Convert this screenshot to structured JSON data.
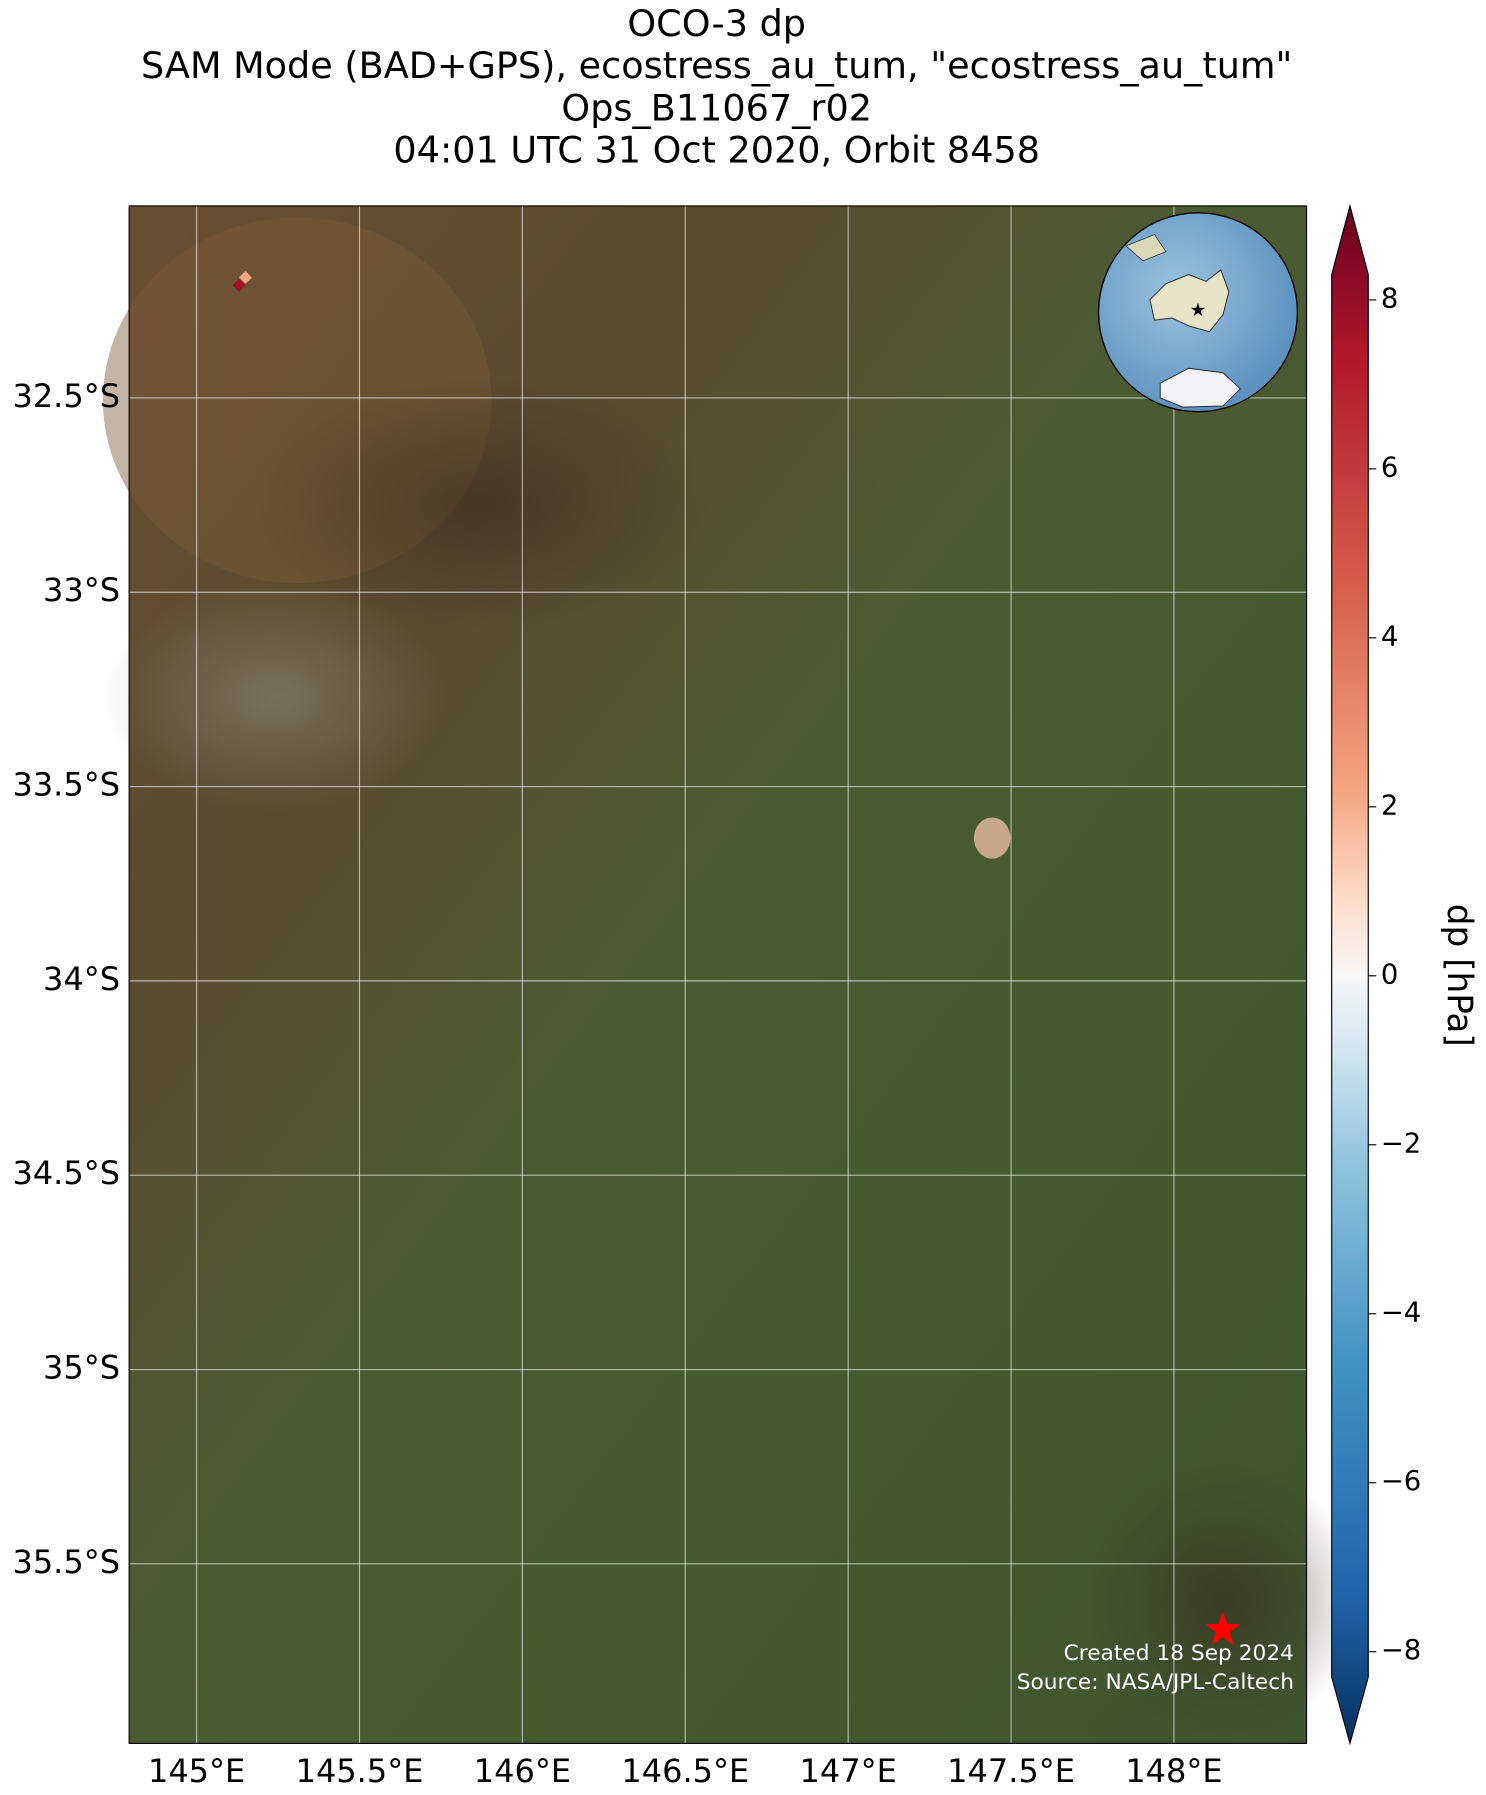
{
  "chart_data": {
    "type": "map",
    "title": [
      "OCO-3 dp",
      "SAM Mode (BAD+GPS), ecostress_au_tum, \"ecostress_au_tum\"",
      "Ops_B11067_r02",
      "04:01 UTC 31 Oct 2020, Orbit 8458"
    ],
    "xlim": [
      144.793,
      148.407
    ],
    "ylim": [
      -35.962,
      -32.006
    ],
    "xticks": [
      {
        "value": 145,
        "label": "145°E"
      },
      {
        "value": 145.5,
        "label": "145.5°E"
      },
      {
        "value": 146,
        "label": "146°E"
      },
      {
        "value": 146.5,
        "label": "146.5°E"
      },
      {
        "value": 147,
        "label": "147°E"
      },
      {
        "value": 147.5,
        "label": "147.5°E"
      },
      {
        "value": 148,
        "label": "148°E"
      }
    ],
    "yticks": [
      {
        "value": -32.5,
        "label": "32.5°S"
      },
      {
        "value": -33,
        "label": "33°S"
      },
      {
        "value": -33.5,
        "label": "33.5°S"
      },
      {
        "value": -34,
        "label": "34°S"
      },
      {
        "value": -34.5,
        "label": "34.5°S"
      },
      {
        "value": -35,
        "label": "35°S"
      },
      {
        "value": -35.5,
        "label": "35.5°S"
      }
    ],
    "grid": true,
    "soundings": {
      "lon": [
        145.13,
        145.15
      ],
      "lat": [
        -32.21,
        -32.19
      ],
      "values": [
        7,
        2
      ]
    },
    "site": {
      "lon": 148.15,
      "lat": -35.67,
      "color": "#ff0000"
    },
    "colorbar": {
      "label": "dp [hPa]",
      "clim": [
        -8.3,
        8.3
      ],
      "ticks": [
        {
          "value": 8,
          "label": "8"
        },
        {
          "value": 6,
          "label": "6"
        },
        {
          "value": 4,
          "label": "4"
        },
        {
          "value": 2,
          "label": "2"
        },
        {
          "value": 0,
          "label": "0"
        },
        {
          "value": -2,
          "label": "−2"
        },
        {
          "value": -4,
          "label": "−4"
        },
        {
          "value": -6,
          "label": "−6"
        },
        {
          "value": -8,
          "label": "−8"
        }
      ]
    },
    "footer": [
      "Created 18 Sep 2024",
      "Source: NASA/JPL-Caltech"
    ]
  }
}
